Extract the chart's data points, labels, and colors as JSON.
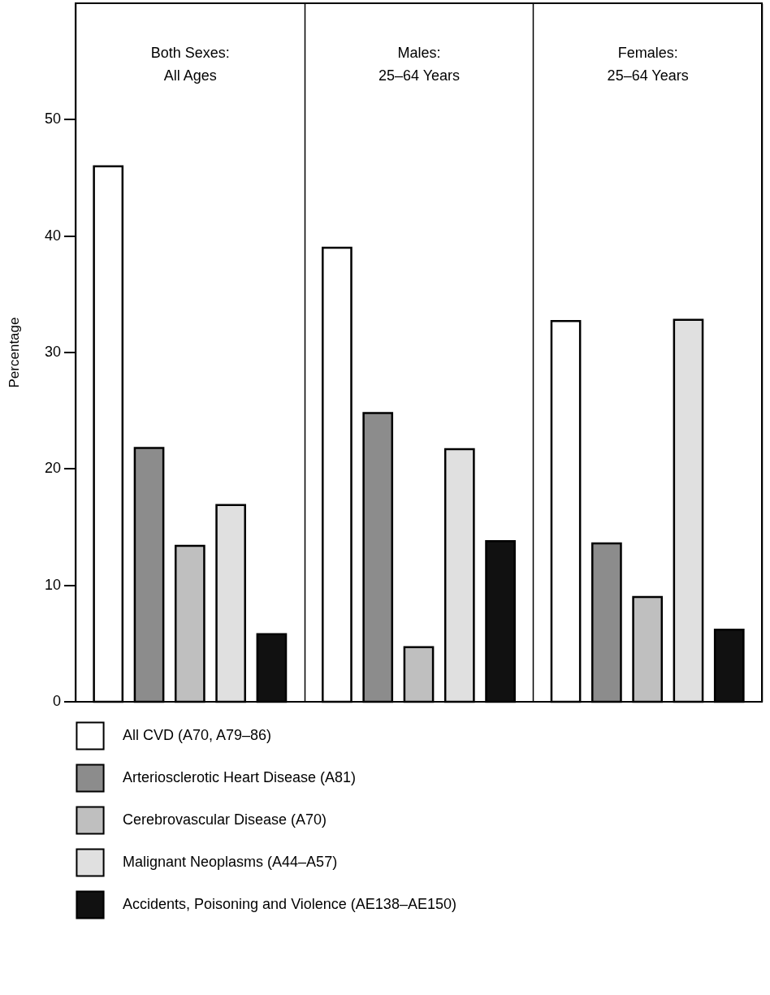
{
  "chart_data": {
    "type": "bar",
    "ylabel": "Percentage",
    "categories": [
      "Both Sexes:\nAll Ages",
      "Males:\n25–64 Years",
      "Females:\n25–64 Years"
    ],
    "series": [
      {
        "name": "All CVD (A70, A79–86)",
        "color": "#ffffff",
        "values": [
          46,
          39,
          32.7
        ]
      },
      {
        "name": "Arteriosclerotic Heart Disease (A81)",
        "color": "#8c8c8c",
        "values": [
          21.8,
          24.8,
          13.6
        ]
      },
      {
        "name": "Cerebrovascular Disease (A70)",
        "color": "#bfbfbf",
        "values": [
          13.4,
          4.7,
          9.0
        ]
      },
      {
        "name": "Malignant Neoplasms (A44–A57)",
        "color": "#e0e0e0",
        "values": [
          16.9,
          21.7,
          32.8
        ]
      },
      {
        "name": "Accidents, Poisoning and Violence (AE138–AE150)",
        "color": "#111111",
        "values": [
          5.8,
          13.8,
          6.2
        ]
      }
    ],
    "ylim": [
      0,
      60
    ],
    "yticks": [
      0,
      10,
      20,
      30,
      40,
      50
    ],
    "legend": "bottom"
  }
}
